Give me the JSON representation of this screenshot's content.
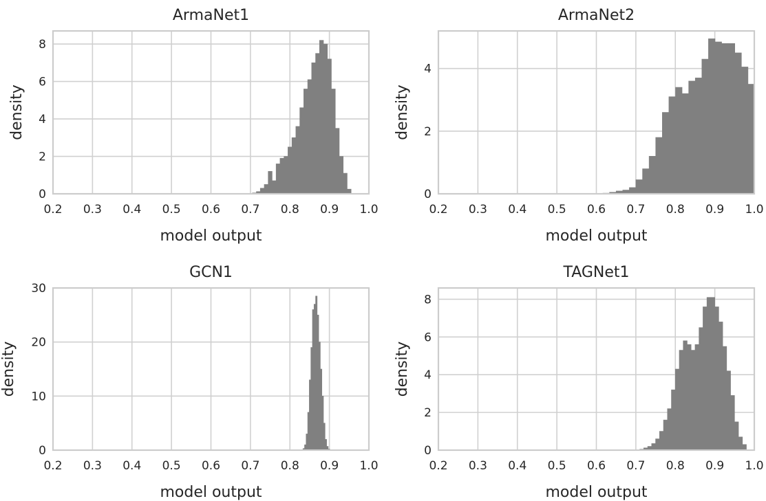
{
  "chart_data": [
    {
      "type": "bar",
      "title": "ArmaNet1",
      "xlabel": "model output",
      "ylabel": "density",
      "xlim": [
        0.2,
        1.0
      ],
      "ylim": [
        0,
        8.7
      ],
      "xticks": [
        "0.2",
        "0.3",
        "0.4",
        "0.5",
        "0.6",
        "0.7",
        "0.8",
        "0.9",
        "1.0"
      ],
      "yticks": [
        "0",
        "2",
        "4",
        "6",
        "8"
      ],
      "grid": true,
      "bins": {
        "start": 0.705,
        "width": 0.01,
        "values": [
          0.05,
          0.12,
          0.3,
          0.5,
          1.2,
          0.7,
          1.6,
          1.9,
          2.0,
          2.5,
          3.0,
          3.6,
          4.6,
          5.6,
          6.1,
          7.0,
          7.5,
          8.2,
          8.0,
          7.2,
          5.6,
          3.5,
          2.0,
          1.1,
          0.25
        ]
      }
    },
    {
      "type": "bar",
      "title": "ArmaNet2",
      "xlabel": "model output",
      "ylabel": "density",
      "xlim": [
        0.2,
        1.0
      ],
      "ylim": [
        0,
        5.2
      ],
      "xticks": [
        "0.2",
        "0.3",
        "0.4",
        "0.5",
        "0.6",
        "0.7",
        "0.8",
        "0.9",
        "1.0"
      ],
      "yticks": [
        "0",
        "2",
        "4"
      ],
      "grid": true,
      "bins": {
        "start": 0.6,
        "width": 0.0167,
        "values": [
          0.01,
          0.02,
          0.05,
          0.09,
          0.12,
          0.2,
          0.45,
          0.8,
          1.2,
          1.8,
          2.6,
          3.1,
          3.4,
          3.2,
          3.6,
          3.7,
          4.3,
          4.95,
          4.85,
          4.8,
          4.8,
          4.5,
          4.05,
          3.5
        ]
      }
    },
    {
      "type": "bar",
      "title": "GCN1",
      "xlabel": "model output",
      "ylabel": "density",
      "xlim": [
        0.2,
        1.0
      ],
      "ylim": [
        0,
        30
      ],
      "xticks": [
        "0.2",
        "0.3",
        "0.4",
        "0.5",
        "0.6",
        "0.7",
        "0.8",
        "0.9",
        "1.0"
      ],
      "yticks": [
        "0",
        "10",
        "20",
        "30"
      ],
      "grid": true,
      "bins": {
        "start": 0.833,
        "width": 0.004,
        "values": [
          0.3,
          1.0,
          3.0,
          7.0,
          13.0,
          19.0,
          26.0,
          27.0,
          28.5,
          25.0,
          20.0,
          15.0,
          10.0,
          5.0,
          2.0,
          0.7,
          0.2
        ]
      }
    },
    {
      "type": "bar",
      "title": "TAGNet1",
      "xlabel": "model output",
      "ylabel": "density",
      "xlim": [
        0.2,
        1.0
      ],
      "ylim": [
        0,
        8.6
      ],
      "xticks": [
        "0.2",
        "0.3",
        "0.4",
        "0.5",
        "0.6",
        "0.7",
        "0.8",
        "0.9",
        "1.0"
      ],
      "yticks": [
        "0",
        "2",
        "4",
        "6",
        "8"
      ],
      "grid": true,
      "bins": {
        "start": 0.71,
        "width": 0.01,
        "values": [
          0.05,
          0.12,
          0.2,
          0.35,
          0.6,
          1.0,
          1.6,
          2.2,
          3.2,
          4.3,
          5.3,
          5.8,
          5.6,
          5.3,
          5.6,
          6.5,
          7.6,
          8.1,
          8.1,
          7.6,
          6.8,
          5.5,
          4.2,
          2.9,
          1.5,
          0.7,
          0.3
        ]
      }
    }
  ]
}
